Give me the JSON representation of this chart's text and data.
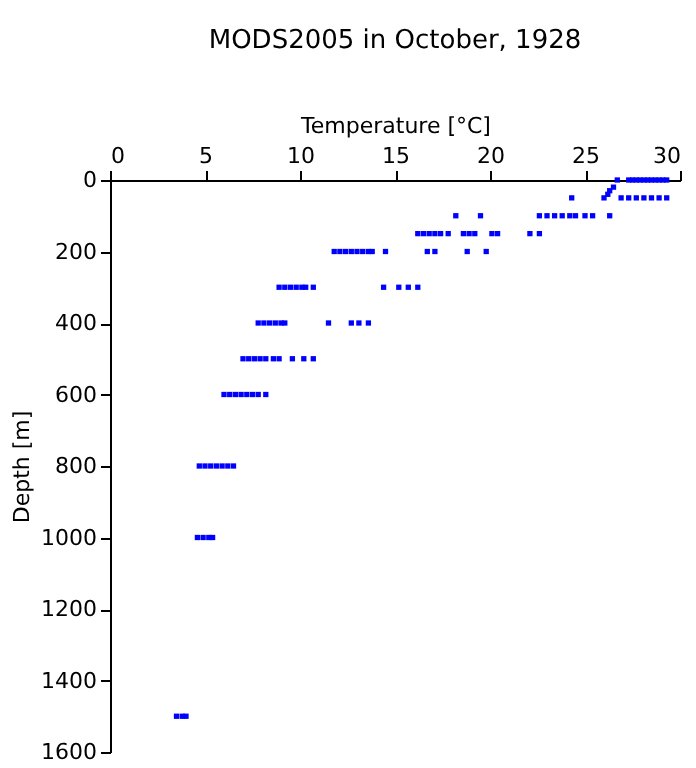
{
  "chart_data": {
    "type": "scatter",
    "title": "MODS2005 in October, 1928",
    "xlabel": "Temperature [°C]",
    "ylabel": "Depth [m]",
    "xlim": [
      0,
      30
    ],
    "xticks": [
      0,
      5,
      10,
      15,
      20,
      25,
      30
    ],
    "ylim": [
      1600,
      0
    ],
    "yticks": [
      0,
      200,
      400,
      600,
      800,
      1000,
      1200,
      1400,
      1600
    ],
    "grid": false,
    "legend": false,
    "marker": "square",
    "series": [
      {
        "color": "#0000ff",
        "x": [
          26.7,
          27.3,
          27.5,
          27.7,
          27.9,
          28.1,
          28.3,
          28.5,
          28.7,
          28.9,
          29.1,
          29.3,
          26.5,
          26.3,
          26.2,
          24.3,
          26.0,
          26.9,
          27.3,
          27.7,
          28.1,
          28.5,
          28.9,
          29.3,
          18.2,
          19.5,
          22.6,
          23.0,
          23.4,
          23.8,
          24.2,
          24.5,
          25.0,
          25.4,
          26.3,
          16.2,
          16.5,
          16.8,
          17.1,
          17.4,
          17.8,
          18.6,
          18.9,
          19.2,
          20.1,
          20.4,
          22.1,
          22.6,
          11.8,
          12.1,
          12.4,
          12.7,
          13.0,
          13.3,
          13.6,
          13.8,
          14.5,
          16.7,
          17.1,
          18.8,
          19.8,
          8.9,
          9.2,
          9.5,
          9.8,
          10.1,
          10.3,
          10.7,
          14.4,
          15.2,
          15.7,
          16.2,
          7.8,
          8.1,
          8.4,
          8.7,
          9.0,
          9.2,
          11.5,
          12.7,
          13.1,
          13.6,
          7.0,
          7.3,
          7.6,
          7.9,
          8.2,
          8.6,
          8.9,
          9.6,
          10.2,
          10.7,
          6.0,
          6.3,
          6.6,
          6.9,
          7.2,
          7.5,
          7.8,
          8.2,
          4.7,
          5.0,
          5.3,
          5.6,
          5.9,
          6.2,
          6.5,
          4.6,
          4.9,
          5.2,
          5.4,
          3.5,
          3.8,
          4.0
        ],
        "values": [
          0,
          0,
          0,
          0,
          0,
          0,
          0,
          0,
          0,
          0,
          0,
          0,
          20,
          30,
          40,
          50,
          50,
          50,
          50,
          50,
          50,
          50,
          50,
          50,
          100,
          100,
          100,
          100,
          100,
          100,
          100,
          100,
          100,
          100,
          100,
          150,
          150,
          150,
          150,
          150,
          150,
          150,
          150,
          150,
          150,
          150,
          150,
          150,
          200,
          200,
          200,
          200,
          200,
          200,
          200,
          200,
          200,
          200,
          200,
          200,
          200,
          300,
          300,
          300,
          300,
          300,
          300,
          300,
          300,
          300,
          300,
          300,
          400,
          400,
          400,
          400,
          400,
          400,
          400,
          400,
          400,
          400,
          500,
          500,
          500,
          500,
          500,
          500,
          500,
          500,
          500,
          500,
          600,
          600,
          600,
          600,
          600,
          600,
          600,
          600,
          800,
          800,
          800,
          800,
          800,
          800,
          800,
          1000,
          1000,
          1000,
          1000,
          1500,
          1500,
          1500
        ]
      }
    ]
  }
}
